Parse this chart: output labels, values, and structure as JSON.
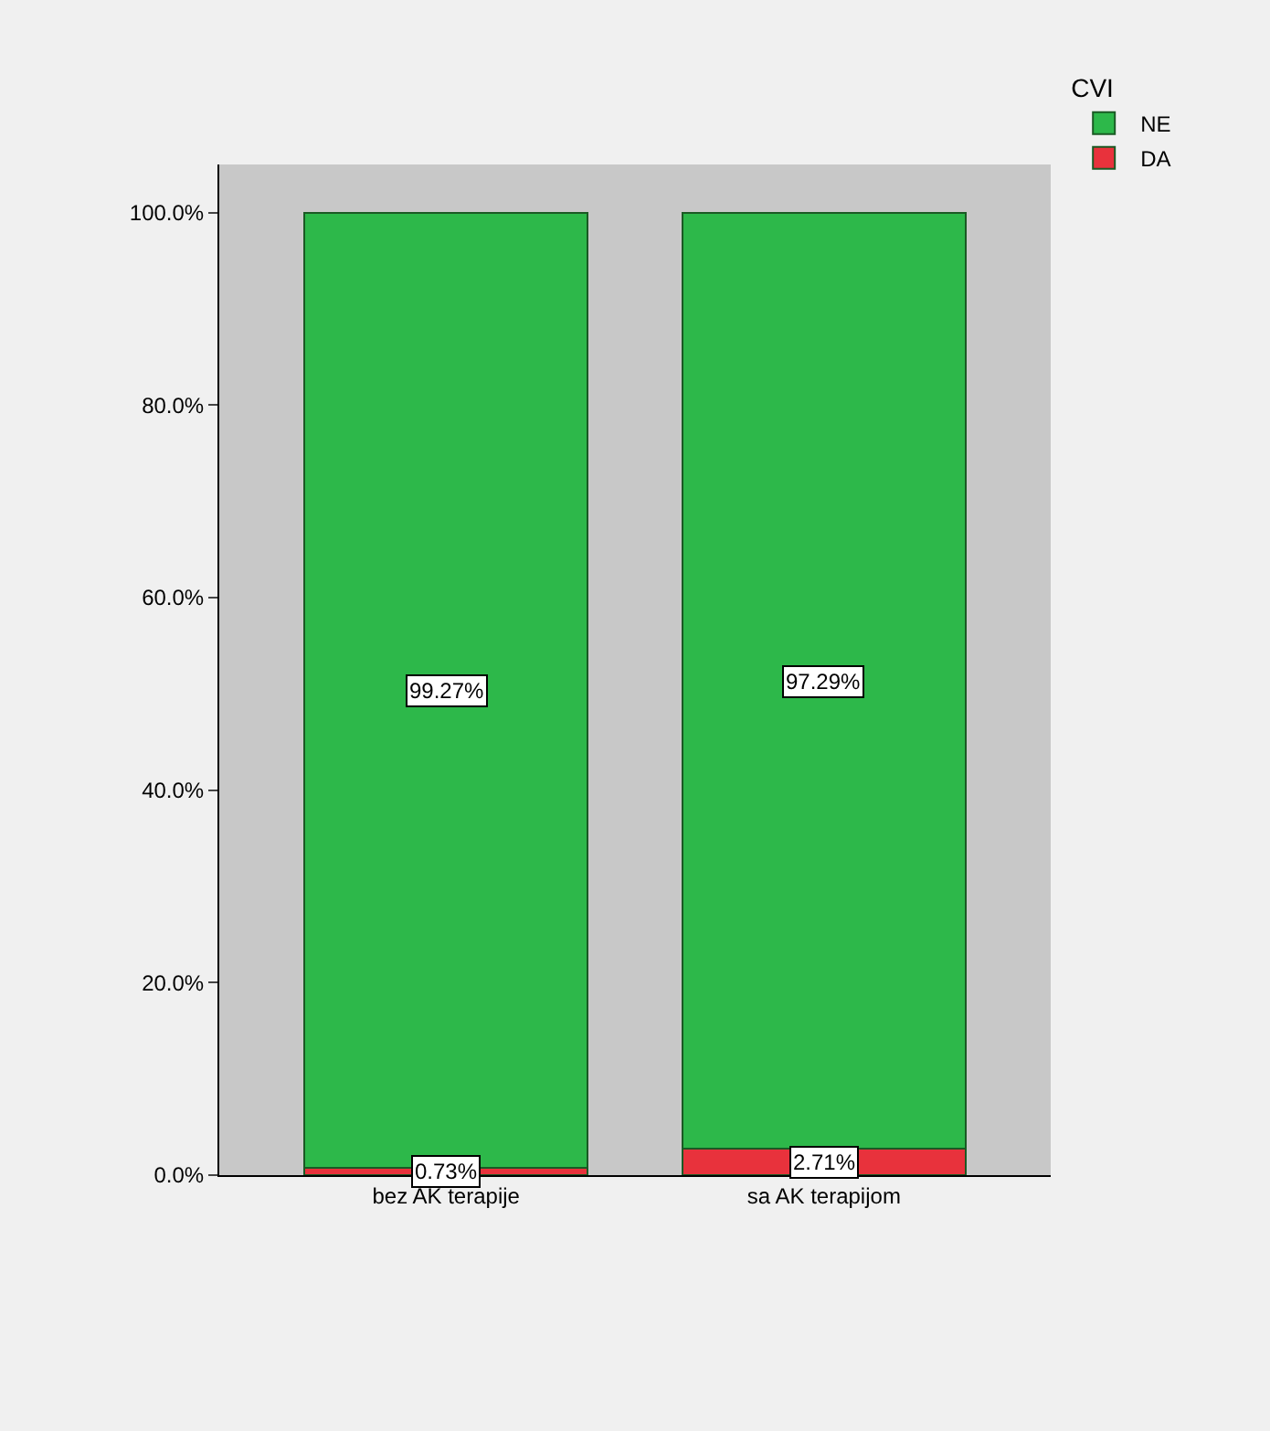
{
  "chart_data": {
    "type": "bar",
    "stacked": true,
    "categories": [
      "bez AK terapije",
      "sa AK terapijom"
    ],
    "legend_title": "CVI",
    "legend": "top right",
    "ylim": [
      0,
      105
    ],
    "yticks": [
      {
        "value": 0,
        "label": "0.0%"
      },
      {
        "value": 20,
        "label": "20.0%"
      },
      {
        "value": 40,
        "label": "40.0%"
      },
      {
        "value": 60,
        "label": "60.0%"
      },
      {
        "value": 80,
        "label": "80.0%"
      },
      {
        "value": 100,
        "label": "100.0%"
      }
    ],
    "series": [
      {
        "name": "DA",
        "color": "#e8323c",
        "values": [
          0.73,
          2.71
        ],
        "value_labels": [
          "0.73%",
          "2.71%"
        ]
      },
      {
        "name": "NE",
        "color": "#2db84a",
        "values": [
          99.27,
          97.29
        ],
        "value_labels": [
          "99.27%",
          "97.29%"
        ]
      }
    ]
  }
}
